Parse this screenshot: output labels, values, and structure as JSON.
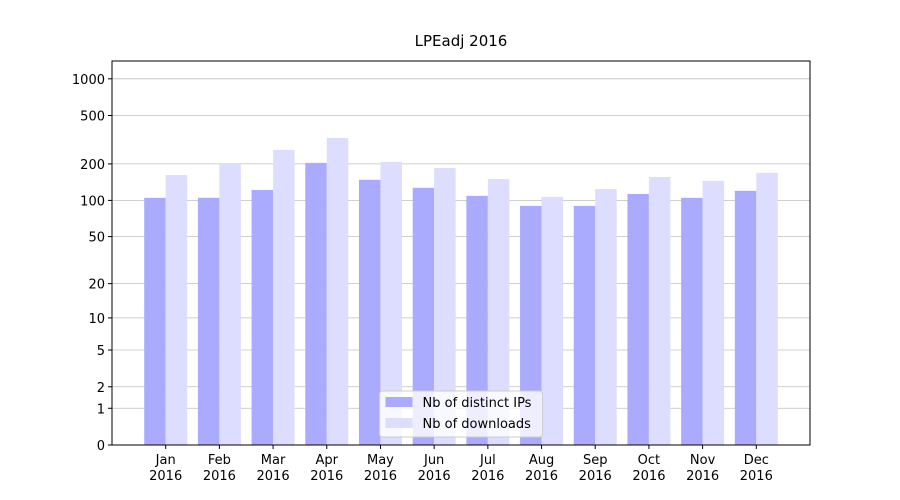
{
  "chart_data": {
    "type": "bar",
    "title": "LPEadj 2016",
    "categories": [
      "Jan\n2016",
      "Feb\n2016",
      "Mar\n2016",
      "Apr\n2016",
      "May\n2016",
      "Jun\n2016",
      "Jul\n2016",
      "Aug\n2016",
      "Sep\n2016",
      "Oct\n2016",
      "Nov\n2016",
      "Dec\n2016"
    ],
    "series": [
      {
        "name": "Nb of distinct IPs",
        "color": "#aaaaff",
        "values": [
          105,
          105,
          122,
          204,
          148,
          127,
          109,
          90,
          90,
          113,
          105,
          120
        ]
      },
      {
        "name": "Nb of downloads",
        "color": "#ddddff",
        "values": [
          162,
          200,
          261,
          327,
          208,
          185,
          150,
          107,
          124,
          156,
          145,
          169
        ]
      }
    ],
    "scale": "log1p",
    "ylim": [
      0,
      1400
    ],
    "yticks": [
      0,
      1,
      2,
      5,
      10,
      20,
      50,
      100,
      200,
      500,
      1000
    ],
    "grid": true,
    "legend": "lower center"
  }
}
